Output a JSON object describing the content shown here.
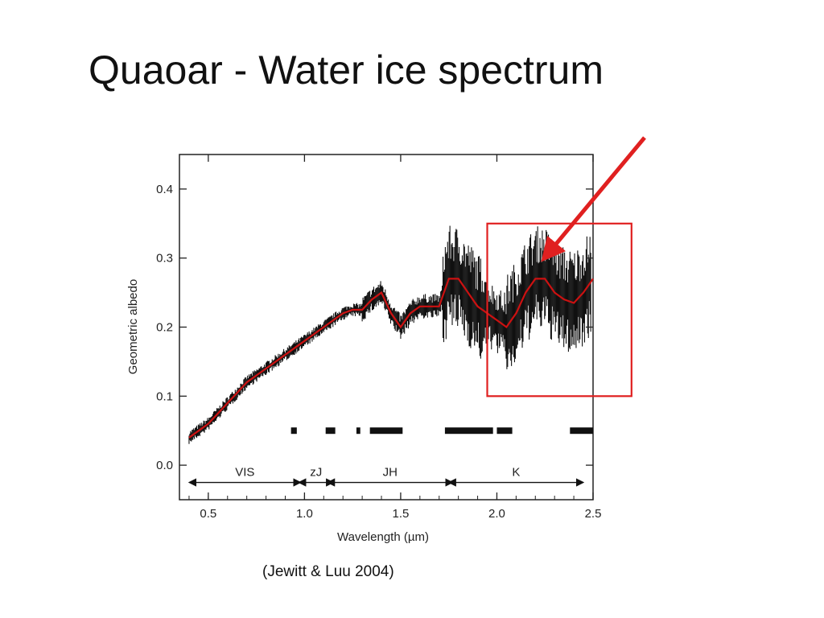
{
  "slide": {
    "title": "Quaoar - Water ice spectrum",
    "citation": "(Jewitt & Luu 2004)"
  },
  "chart_data": {
    "type": "line",
    "xlabel": "Wavelength (µm)",
    "ylabel": "Geometric albedo",
    "xlim": [
      0.35,
      2.5
    ],
    "ylim": [
      -0.05,
      0.45
    ],
    "x_ticks": [
      "0.5",
      "1.0",
      "1.5",
      "2.0",
      "2.5"
    ],
    "y_ticks": [
      "0.0",
      "0.1",
      "0.2",
      "0.3",
      "0.4"
    ],
    "grid": false,
    "series": [
      {
        "color": "#cc1111",
        "x": [
          0.4,
          0.5,
          0.6,
          0.7,
          0.8,
          0.9,
          1.0,
          1.1,
          1.2,
          1.25,
          1.3,
          1.35,
          1.4,
          1.45,
          1.5,
          1.55,
          1.6,
          1.65,
          1.7,
          1.75,
          1.8,
          1.85,
          1.9,
          1.95,
          2.0,
          2.05,
          2.1,
          2.15,
          2.2,
          2.25,
          2.3,
          2.35,
          2.4,
          2.45,
          2.5
        ],
        "y": [
          0.04,
          0.06,
          0.09,
          0.12,
          0.14,
          0.16,
          0.18,
          0.2,
          0.22,
          0.225,
          0.225,
          0.24,
          0.25,
          0.22,
          0.2,
          0.22,
          0.23,
          0.23,
          0.23,
          0.27,
          0.27,
          0.25,
          0.23,
          0.22,
          0.21,
          0.2,
          0.22,
          0.25,
          0.27,
          0.27,
          0.25,
          0.24,
          0.235,
          0.25,
          0.27
        ]
      }
    ],
    "bands": [
      {
        "label": "VIS",
        "x0": 0.4,
        "x1": 0.98
      },
      {
        "label": "zJ",
        "x0": 0.97,
        "x1": 1.15
      },
      {
        "label": "JH",
        "x0": 1.12,
        "x1": 1.77
      },
      {
        "label": "K",
        "x0": 1.75,
        "x1": 2.45
      }
    ],
    "telluric_gaps": [
      [
        0.93,
        0.96
      ],
      [
        1.11,
        1.16
      ],
      [
        1.27,
        1.29
      ],
      [
        1.34,
        1.51
      ],
      [
        1.73,
        1.98
      ],
      [
        2.0,
        2.08
      ],
      [
        2.38,
        2.5
      ]
    ],
    "highlight_box": {
      "x0": 1.95,
      "x1": 2.7,
      "y0": 0.1,
      "y1": 0.35,
      "color": "#e02020"
    },
    "arrow_color": "#e02020"
  }
}
